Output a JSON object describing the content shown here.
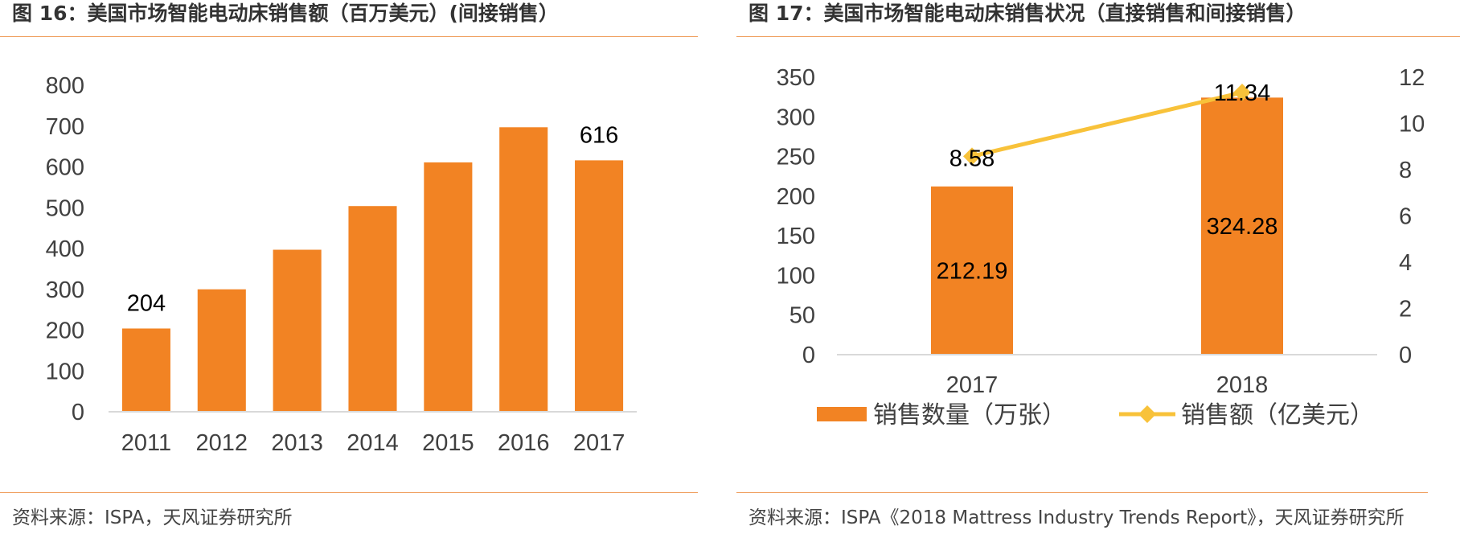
{
  "colors": {
    "bar": "#f28323",
    "line": "#f8c23a",
    "axis": "#d9d9d9",
    "rule": "#f0a060",
    "text": "#404040"
  },
  "figures": [
    {
      "title": "图 16：美国市场智能电动床销售额（百万美元）(间接销售）",
      "source": "资料来源：ISPA，天风证券研究所"
    },
    {
      "title": "图 17：美国市场智能电动床销售状况（直接销售和间接销售）",
      "source": "资料来源：ISPA《2018 Mattress Industry Trends Report》，天风证券研究所"
    }
  ],
  "chart_data": [
    {
      "type": "bar",
      "title": "美国市场智能电动床销售额（百万美元）(间接销售）",
      "categories": [
        "2011",
        "2012",
        "2013",
        "2014",
        "2015",
        "2016",
        "2017"
      ],
      "values": [
        204,
        300,
        397,
        504,
        611,
        697,
        616
      ],
      "data_labels": [
        {
          "index": 0,
          "text": "204"
        },
        {
          "index": 6,
          "text": "616"
        }
      ],
      "ylim": [
        0,
        800
      ],
      "yticks": [
        "0",
        "100",
        "200",
        "300",
        "400",
        "500",
        "600",
        "700",
        "800"
      ],
      "xlabel": "",
      "ylabel": "",
      "grid": false
    },
    {
      "type": "bar+line",
      "title": "美国市场智能电动床销售状况（直接销售和间接销售）",
      "categories": [
        "2017",
        "2018"
      ],
      "series": [
        {
          "name": "销售数量（万张）",
          "type": "bar",
          "axis": "left",
          "values": [
            212.19,
            324.28
          ],
          "labels": [
            "212.19",
            "324.28"
          ]
        },
        {
          "name": "销售额（亿美元）",
          "type": "line",
          "axis": "right",
          "values": [
            8.58,
            11.34
          ],
          "labels": [
            "8.58",
            "11.34"
          ]
        }
      ],
      "ylim_left": [
        0,
        350
      ],
      "yticks_left": [
        "0",
        "50",
        "100",
        "150",
        "200",
        "250",
        "300",
        "350"
      ],
      "ylim_right": [
        0,
        12
      ],
      "yticks_right": [
        "0",
        "2",
        "4",
        "6",
        "8",
        "10",
        "12"
      ],
      "legend_position": "bottom",
      "grid": false
    }
  ]
}
